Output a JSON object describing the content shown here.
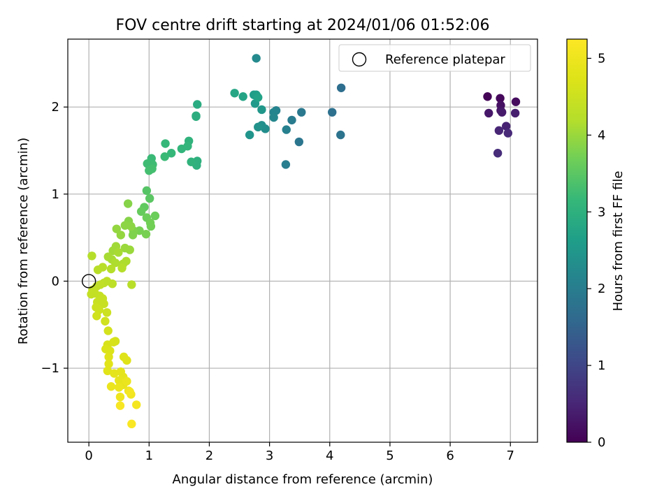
{
  "chart_data": {
    "type": "scatter",
    "title": "FOV centre drift starting at 2024/01/06 01:52:06",
    "xlabel": "Angular distance from reference (arcmin)",
    "ylabel": "Rotation from reference (arcmin)",
    "xlim": [
      -0.35,
      7.45
    ],
    "ylim": [
      -1.85,
      2.78
    ],
    "xticks": [
      0,
      1,
      2,
      3,
      4,
      5,
      6,
      7
    ],
    "yticks": [
      -1,
      0,
      1,
      2
    ],
    "xtick_labels": [
      "0",
      "1",
      "2",
      "3",
      "4",
      "5",
      "6",
      "7"
    ],
    "ytick_labels": [
      "−1",
      "0",
      "1",
      "2"
    ],
    "grid": true,
    "legend": {
      "position": "top-right",
      "entries": [
        "Reference platepar"
      ]
    },
    "reference_point": {
      "name": "Reference platepar",
      "x": 0,
      "y": 0
    },
    "colorbar": {
      "label": "Hours from first FF file",
      "min": 0,
      "max": 5.25,
      "colormap": "viridis",
      "ticks": [
        0,
        1,
        2,
        3,
        4,
        5
      ],
      "tick_labels": [
        "0",
        "1",
        "2",
        "3",
        "4",
        "5"
      ]
    },
    "points": [
      {
        "x": 6.62,
        "y": 2.12,
        "t": 0.05
      },
      {
        "x": 6.83,
        "y": 2.1,
        "t": 0.1
      },
      {
        "x": 7.09,
        "y": 2.06,
        "t": 0.15
      },
      {
        "x": 6.84,
        "y": 2.02,
        "t": 0.2
      },
      {
        "x": 6.84,
        "y": 1.96,
        "t": 0.25
      },
      {
        "x": 6.64,
        "y": 1.93,
        "t": 0.3
      },
      {
        "x": 6.86,
        "y": 1.94,
        "t": 0.35
      },
      {
        "x": 7.08,
        "y": 1.93,
        "t": 0.4
      },
      {
        "x": 6.93,
        "y": 1.78,
        "t": 0.45
      },
      {
        "x": 6.81,
        "y": 1.73,
        "t": 0.5
      },
      {
        "x": 6.96,
        "y": 1.7,
        "t": 0.55
      },
      {
        "x": 6.79,
        "y": 1.47,
        "t": 0.6
      },
      {
        "x": 4.19,
        "y": 2.22,
        "t": 1.7
      },
      {
        "x": 4.04,
        "y": 1.94,
        "t": 1.75
      },
      {
        "x": 4.18,
        "y": 1.68,
        "t": 1.8
      },
      {
        "x": 3.49,
        "y": 1.6,
        "t": 1.85
      },
      {
        "x": 3.53,
        "y": 1.94,
        "t": 1.9
      },
      {
        "x": 3.37,
        "y": 1.85,
        "t": 1.95
      },
      {
        "x": 3.27,
        "y": 1.34,
        "t": 2.0
      },
      {
        "x": 3.28,
        "y": 1.74,
        "t": 2.05
      },
      {
        "x": 3.11,
        "y": 1.96,
        "t": 2.1
      },
      {
        "x": 3.07,
        "y": 1.94,
        "t": 2.15
      },
      {
        "x": 3.07,
        "y": 1.88,
        "t": 2.2
      },
      {
        "x": 2.78,
        "y": 2.56,
        "t": 2.25
      },
      {
        "x": 2.93,
        "y": 1.75,
        "t": 2.3
      },
      {
        "x": 2.87,
        "y": 1.79,
        "t": 2.35
      },
      {
        "x": 2.81,
        "y": 1.77,
        "t": 2.4
      },
      {
        "x": 2.67,
        "y": 1.68,
        "t": 2.45
      },
      {
        "x": 2.87,
        "y": 1.97,
        "t": 2.5
      },
      {
        "x": 2.76,
        "y": 2.04,
        "t": 2.55
      },
      {
        "x": 2.74,
        "y": 2.14,
        "t": 2.6
      },
      {
        "x": 2.78,
        "y": 2.14,
        "t": 2.65
      },
      {
        "x": 2.81,
        "y": 2.11,
        "t": 2.7
      },
      {
        "x": 2.56,
        "y": 2.12,
        "t": 2.75
      },
      {
        "x": 2.42,
        "y": 2.16,
        "t": 2.8
      },
      {
        "x": 1.8,
        "y": 2.03,
        "t": 2.9
      },
      {
        "x": 1.78,
        "y": 1.9,
        "t": 2.95
      },
      {
        "x": 1.78,
        "y": 1.89,
        "t": 2.95
      },
      {
        "x": 1.8,
        "y": 1.38,
        "t": 3.0
      },
      {
        "x": 1.79,
        "y": 1.33,
        "t": 3.0
      },
      {
        "x": 1.7,
        "y": 1.37,
        "t": 3.05
      },
      {
        "x": 1.66,
        "y": 1.61,
        "t": 3.05
      },
      {
        "x": 1.64,
        "y": 1.55,
        "t": 3.1
      },
      {
        "x": 1.54,
        "y": 1.52,
        "t": 3.1
      },
      {
        "x": 1.37,
        "y": 1.47,
        "t": 3.15
      },
      {
        "x": 1.27,
        "y": 1.58,
        "t": 3.15
      },
      {
        "x": 1.26,
        "y": 1.43,
        "t": 3.2
      },
      {
        "x": 1.04,
        "y": 1.41,
        "t": 3.2
      },
      {
        "x": 1.06,
        "y": 1.34,
        "t": 3.25
      },
      {
        "x": 0.97,
        "y": 1.35,
        "t": 3.25
      },
      {
        "x": 1.05,
        "y": 1.29,
        "t": 3.3
      },
      {
        "x": 1.0,
        "y": 1.27,
        "t": 3.3
      },
      {
        "x": 0.96,
        "y": 1.04,
        "t": 3.45
      },
      {
        "x": 1.01,
        "y": 0.95,
        "t": 3.5
      },
      {
        "x": 0.92,
        "y": 0.85,
        "t": 3.55
      },
      {
        "x": 0.87,
        "y": 0.8,
        "t": 3.6
      },
      {
        "x": 1.1,
        "y": 0.75,
        "t": 3.65
      },
      {
        "x": 0.96,
        "y": 0.73,
        "t": 3.65
      },
      {
        "x": 1.02,
        "y": 0.67,
        "t": 3.7
      },
      {
        "x": 1.03,
        "y": 0.63,
        "t": 3.7
      },
      {
        "x": 0.95,
        "y": 0.54,
        "t": 3.75
      },
      {
        "x": 0.84,
        "y": 0.58,
        "t": 3.75
      },
      {
        "x": 0.74,
        "y": 0.58,
        "t": 3.8
      },
      {
        "x": 0.73,
        "y": 0.53,
        "t": 3.8
      },
      {
        "x": 0.65,
        "y": 0.89,
        "t": 3.85
      },
      {
        "x": 0.66,
        "y": 0.69,
        "t": 3.85
      },
      {
        "x": 0.6,
        "y": 0.64,
        "t": 3.9
      },
      {
        "x": 0.7,
        "y": 0.63,
        "t": 3.9
      },
      {
        "x": 0.46,
        "y": 0.6,
        "t": 3.95
      },
      {
        "x": 0.53,
        "y": 0.53,
        "t": 3.95
      },
      {
        "x": 0.6,
        "y": 0.38,
        "t": 4.0
      },
      {
        "x": 0.68,
        "y": 0.36,
        "t": 4.0
      },
      {
        "x": 0.45,
        "y": 0.4,
        "t": 4.05
      },
      {
        "x": 0.4,
        "y": 0.35,
        "t": 4.05
      },
      {
        "x": 0.49,
        "y": 0.33,
        "t": 4.1
      },
      {
        "x": 0.32,
        "y": 0.28,
        "t": 4.1
      },
      {
        "x": 0.38,
        "y": 0.25,
        "t": 4.1
      },
      {
        "x": 0.62,
        "y": 0.23,
        "t": 4.15
      },
      {
        "x": 0.57,
        "y": 0.2,
        "t": 4.15
      },
      {
        "x": 0.44,
        "y": 0.21,
        "t": 4.15
      },
      {
        "x": 0.55,
        "y": 0.15,
        "t": 4.2
      },
      {
        "x": 0.37,
        "y": 0.14,
        "t": 4.2
      },
      {
        "x": 0.05,
        "y": 0.29,
        "t": 4.2
      },
      {
        "x": 0.23,
        "y": 0.16,
        "t": 4.25
      },
      {
        "x": 0.15,
        "y": 0.13,
        "t": 4.25
      },
      {
        "x": 0.71,
        "y": -0.04,
        "t": 4.25
      },
      {
        "x": 0.39,
        "y": -0.03,
        "t": 4.3
      },
      {
        "x": 0.3,
        "y": 0.0,
        "t": 4.3
      },
      {
        "x": 0.25,
        "y": -0.02,
        "t": 4.3
      },
      {
        "x": 0.19,
        "y": -0.04,
        "t": 4.35
      },
      {
        "x": 0.13,
        "y": -0.06,
        "t": 4.35
      },
      {
        "x": 0.06,
        "y": -0.1,
        "t": 4.35
      },
      {
        "x": 0.1,
        "y": -0.14,
        "t": 4.4
      },
      {
        "x": 0.04,
        "y": -0.15,
        "t": 4.4
      },
      {
        "x": 0.18,
        "y": -0.17,
        "t": 4.4
      },
      {
        "x": 0.23,
        "y": -0.2,
        "t": 4.45
      },
      {
        "x": 0.14,
        "y": -0.24,
        "t": 4.45
      },
      {
        "x": 0.25,
        "y": -0.26,
        "t": 4.45
      },
      {
        "x": 0.12,
        "y": -0.3,
        "t": 4.5
      },
      {
        "x": 0.17,
        "y": -0.33,
        "t": 4.5
      },
      {
        "x": 0.3,
        "y": -0.36,
        "t": 4.5
      },
      {
        "x": 0.13,
        "y": -0.4,
        "t": 4.55
      },
      {
        "x": 0.27,
        "y": -0.46,
        "t": 4.55
      },
      {
        "x": 0.32,
        "y": -0.57,
        "t": 4.6
      },
      {
        "x": 0.44,
        "y": -0.69,
        "t": 4.6
      },
      {
        "x": 0.41,
        "y": -0.7,
        "t": 4.65
      },
      {
        "x": 0.31,
        "y": -0.73,
        "t": 4.65
      },
      {
        "x": 0.28,
        "y": -0.78,
        "t": 4.7
      },
      {
        "x": 0.35,
        "y": -0.8,
        "t": 4.7
      },
      {
        "x": 0.33,
        "y": -0.87,
        "t": 4.75
      },
      {
        "x": 0.58,
        "y": -0.87,
        "t": 4.75
      },
      {
        "x": 0.63,
        "y": -0.91,
        "t": 4.75
      },
      {
        "x": 0.33,
        "y": -0.95,
        "t": 4.8
      },
      {
        "x": 0.31,
        "y": -1.03,
        "t": 4.8
      },
      {
        "x": 0.42,
        "y": -1.06,
        "t": 4.85
      },
      {
        "x": 0.53,
        "y": -1.04,
        "t": 4.85
      },
      {
        "x": 0.57,
        "y": -1.1,
        "t": 4.85
      },
      {
        "x": 0.5,
        "y": -1.14,
        "t": 4.9
      },
      {
        "x": 0.57,
        "y": -1.19,
        "t": 4.9
      },
      {
        "x": 0.63,
        "y": -1.15,
        "t": 4.95
      },
      {
        "x": 0.37,
        "y": -1.21,
        "t": 4.95
      },
      {
        "x": 0.5,
        "y": -1.22,
        "t": 4.95
      },
      {
        "x": 0.66,
        "y": -1.26,
        "t": 5.0
      },
      {
        "x": 0.52,
        "y": -1.33,
        "t": 5.0
      },
      {
        "x": 0.7,
        "y": -1.3,
        "t": 5.05
      },
      {
        "x": 0.68,
        "y": -1.27,
        "t": 5.1
      },
      {
        "x": 0.79,
        "y": -1.42,
        "t": 5.1
      },
      {
        "x": 0.52,
        "y": -1.43,
        "t": 5.15
      },
      {
        "x": 0.71,
        "y": -1.64,
        "t": 5.2
      }
    ]
  }
}
